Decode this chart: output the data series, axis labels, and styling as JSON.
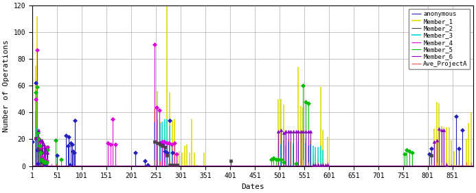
{
  "title": "",
  "xlabel": "Dates",
  "ylabel": "Number of Operations",
  "xlim": [
    1,
    893
  ],
  "ylim": [
    0,
    120
  ],
  "xticks": [
    1,
    51,
    101,
    151,
    201,
    251,
    301,
    351,
    401,
    451,
    501,
    551,
    601,
    651,
    701,
    751,
    801,
    851
  ],
  "yticks": [
    0,
    20,
    40,
    60,
    80,
    100,
    120
  ],
  "members": [
    "anonymous",
    "Member_1",
    "Member_2",
    "Member_3",
    "Member_4",
    "Member_5",
    "Member_6",
    "Ave_ProjectA"
  ],
  "colors": [
    "#2222bb",
    "#dddd00",
    "#444444",
    "#00dddd",
    "#dd00dd",
    "#00bb00",
    "#8800bb",
    "#ee6666"
  ],
  "markers": [
    "D",
    "None",
    "s",
    "None",
    "D",
    "D",
    "^",
    "None"
  ],
  "linewidths": [
    0.8,
    1.2,
    0.8,
    1.2,
    0.8,
    0.8,
    0.8,
    1.0
  ],
  "markersize": 3,
  "background_color": "#ffffff",
  "grid_color": "#999999",
  "data": {
    "anonymous": {
      "x": [
        1,
        8,
        10,
        12,
        22,
        24,
        26,
        28,
        51,
        69,
        73,
        75,
        77,
        79,
        81,
        83,
        85,
        87,
        209,
        229,
        234,
        259,
        264,
        269,
        274,
        279,
        284,
        804,
        809,
        859,
        864,
        871
      ],
      "y": [
        18,
        62,
        12,
        2,
        3,
        2,
        1,
        3,
        8,
        23,
        15,
        22,
        1,
        17,
        16,
        11,
        10,
        34,
        10,
        4,
        1,
        17,
        16,
        11,
        10,
        34,
        10,
        9,
        13,
        37,
        13,
        27
      ]
    },
    "Member_1": {
      "x": [
        8,
        10,
        12,
        14,
        16,
        22,
        26,
        249,
        254,
        259,
        264,
        269,
        274,
        279,
        284,
        289,
        294,
        299,
        304,
        309,
        314,
        319,
        324,
        329,
        334,
        349,
        499,
        504,
        509,
        514,
        519,
        524,
        529,
        534,
        539,
        544,
        549,
        554,
        564,
        569,
        574,
        579,
        584,
        589,
        599,
        814,
        819,
        824,
        829,
        834,
        839,
        844,
        849,
        854,
        859,
        864,
        869,
        874,
        879,
        884,
        889
      ],
      "y": [
        75,
        112,
        27,
        19,
        14,
        1,
        3,
        43,
        56,
        33,
        31,
        32,
        120,
        55,
        34,
        35,
        10,
        11,
        10,
        15,
        16,
        10,
        35,
        10,
        1,
        10,
        50,
        50,
        46,
        27,
        20,
        18,
        15,
        1,
        74,
        45,
        44,
        21,
        19,
        9,
        8,
        6,
        59,
        27,
        22,
        28,
        48,
        47,
        30,
        29,
        29,
        29,
        19,
        11,
        1,
        1,
        1,
        1,
        20,
        32,
        40
      ]
    },
    "Member_2": {
      "x": [
        8,
        14,
        16,
        18,
        20,
        22,
        24,
        26,
        28,
        30,
        32,
        249,
        254,
        259,
        264,
        269,
        274,
        279,
        284,
        289,
        294,
        402,
        809
      ],
      "y": [
        21,
        13,
        12,
        11,
        10,
        3,
        5,
        3,
        3,
        3,
        14,
        18,
        17,
        16,
        15,
        14,
        8,
        1,
        1,
        1,
        1,
        4,
        8
      ]
    },
    "Member_3": {
      "x": [
        8,
        10,
        12,
        14,
        16,
        18,
        20,
        22,
        24,
        26,
        28,
        30,
        32,
        249,
        254,
        259,
        264,
        269,
        274,
        279,
        284,
        289,
        294,
        299,
        504,
        509,
        514,
        519,
        524,
        529,
        539,
        554,
        559,
        564,
        569,
        574,
        579,
        584,
        589,
        594,
        599
      ],
      "y": [
        41,
        29,
        14,
        13,
        13,
        10,
        6,
        4,
        4,
        4,
        3,
        3,
        13,
        33,
        35,
        32,
        33,
        35,
        35,
        30,
        8,
        1,
        1,
        1,
        16,
        19,
        15,
        18,
        1,
        17,
        18,
        17,
        15,
        16,
        15,
        14,
        14,
        15,
        12,
        1,
        1
      ]
    },
    "Member_4": {
      "x": [
        8,
        10,
        12,
        14,
        16,
        18,
        20,
        22,
        24,
        26,
        28,
        30,
        32,
        154,
        159,
        164,
        169,
        248,
        253,
        258,
        263,
        268,
        273,
        278,
        283,
        288,
        293
      ],
      "y": [
        50,
        87,
        25,
        21,
        18,
        14,
        7,
        5,
        5,
        5,
        4,
        4,
        14,
        17,
        16,
        35,
        16,
        91,
        44,
        42,
        18,
        18,
        17,
        17,
        16,
        17,
        9
      ]
    },
    "Member_5": {
      "x": [
        8,
        10,
        12,
        14,
        16,
        18,
        20,
        22,
        24,
        26,
        28,
        30,
        32,
        48,
        59,
        484,
        489,
        494,
        499,
        504,
        509,
        534,
        549,
        554,
        559,
        754,
        759,
        764,
        769
      ],
      "y": [
        55,
        59,
        25,
        20,
        15,
        10,
        5,
        4,
        3,
        3,
        3,
        3,
        12,
        19,
        5,
        5,
        6,
        5,
        5,
        5,
        3,
        2,
        60,
        48,
        47,
        9,
        12,
        11,
        10
      ]
    },
    "Member_6": {
      "x": [
        8,
        14,
        18,
        20,
        22,
        24,
        26,
        28,
        30,
        32,
        499,
        504,
        509,
        514,
        519,
        524,
        529,
        534,
        539,
        544,
        549,
        554,
        559,
        564,
        569,
        574,
        579,
        584,
        589,
        594,
        599,
        814,
        819,
        824,
        829,
        834,
        839
      ],
      "y": [
        21,
        27,
        19,
        19,
        18,
        16,
        14,
        12,
        10,
        10,
        26,
        27,
        25,
        26,
        26,
        26,
        26,
        26,
        26,
        26,
        26,
        26,
        26,
        26,
        1,
        1,
        1,
        1,
        1,
        1,
        1,
        18,
        19,
        28,
        27,
        27,
        1
      ]
    },
    "Ave_ProjectA": {
      "x": [
        1,
        10,
        20,
        30,
        40,
        50,
        249,
        259,
        269,
        279,
        289,
        549,
        559,
        569,
        579,
        589,
        599,
        809,
        819,
        829,
        839,
        849,
        879,
        889
      ],
      "y": [
        1,
        5,
        8,
        3,
        2,
        2,
        5,
        4,
        4,
        4,
        2,
        5,
        3,
        3,
        3,
        3,
        3,
        2,
        3,
        3,
        3,
        2,
        3,
        3
      ]
    }
  }
}
